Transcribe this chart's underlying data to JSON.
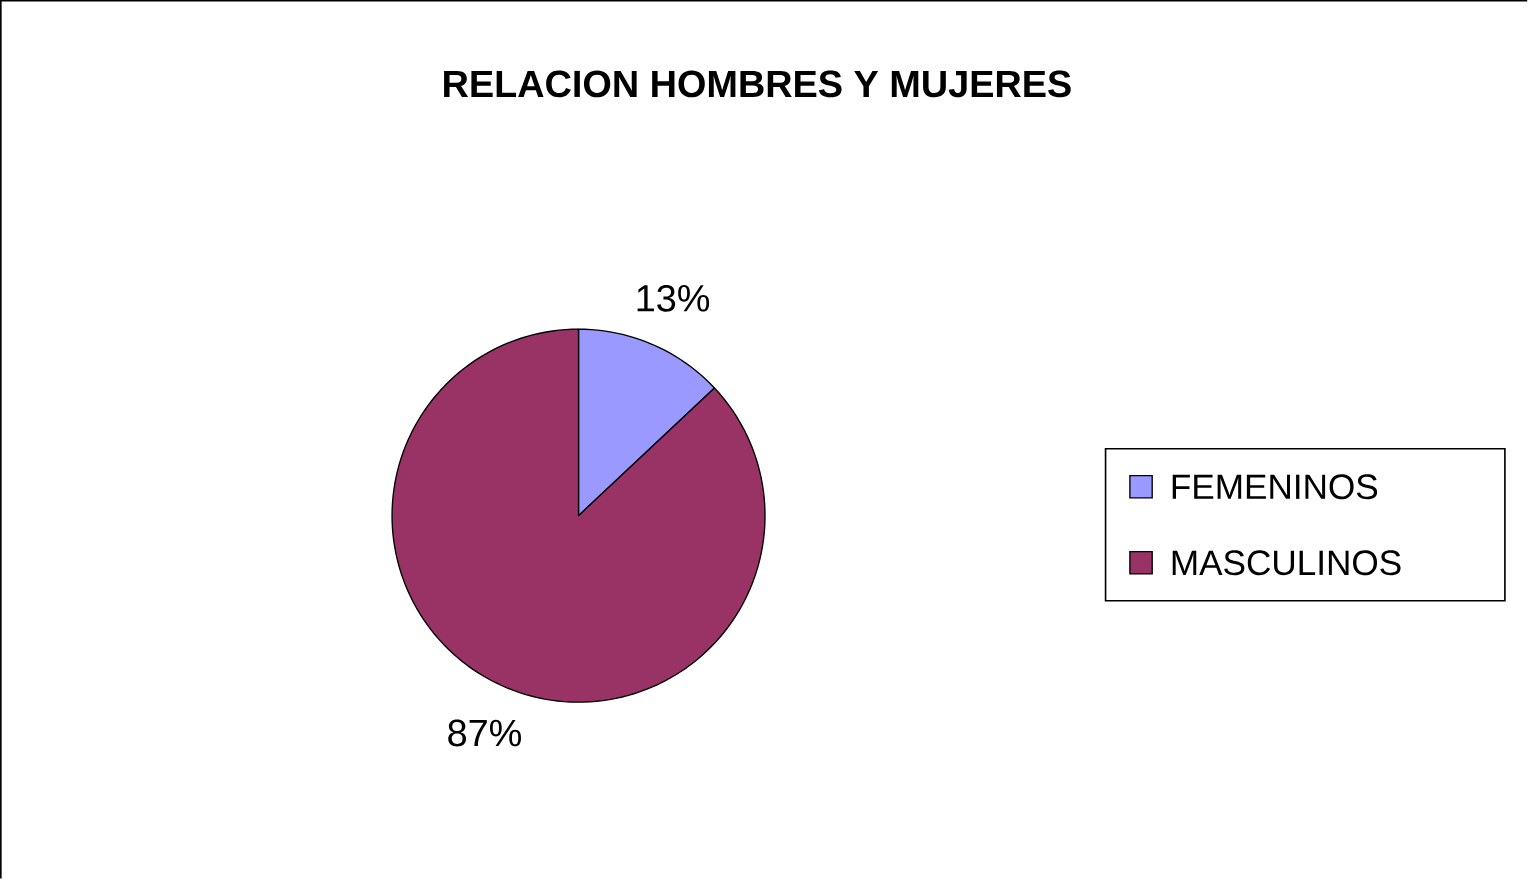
{
  "chart_data": {
    "type": "pie",
    "title": "RELACION HOMBRES Y MUJERES",
    "categories": [
      "FEMENINOS",
      "MASCULINOS"
    ],
    "values": [
      13,
      87
    ],
    "colors": [
      "#9999ff",
      "#993366"
    ],
    "value_labels": [
      "13%",
      "87%"
    ],
    "legend": "right"
  }
}
